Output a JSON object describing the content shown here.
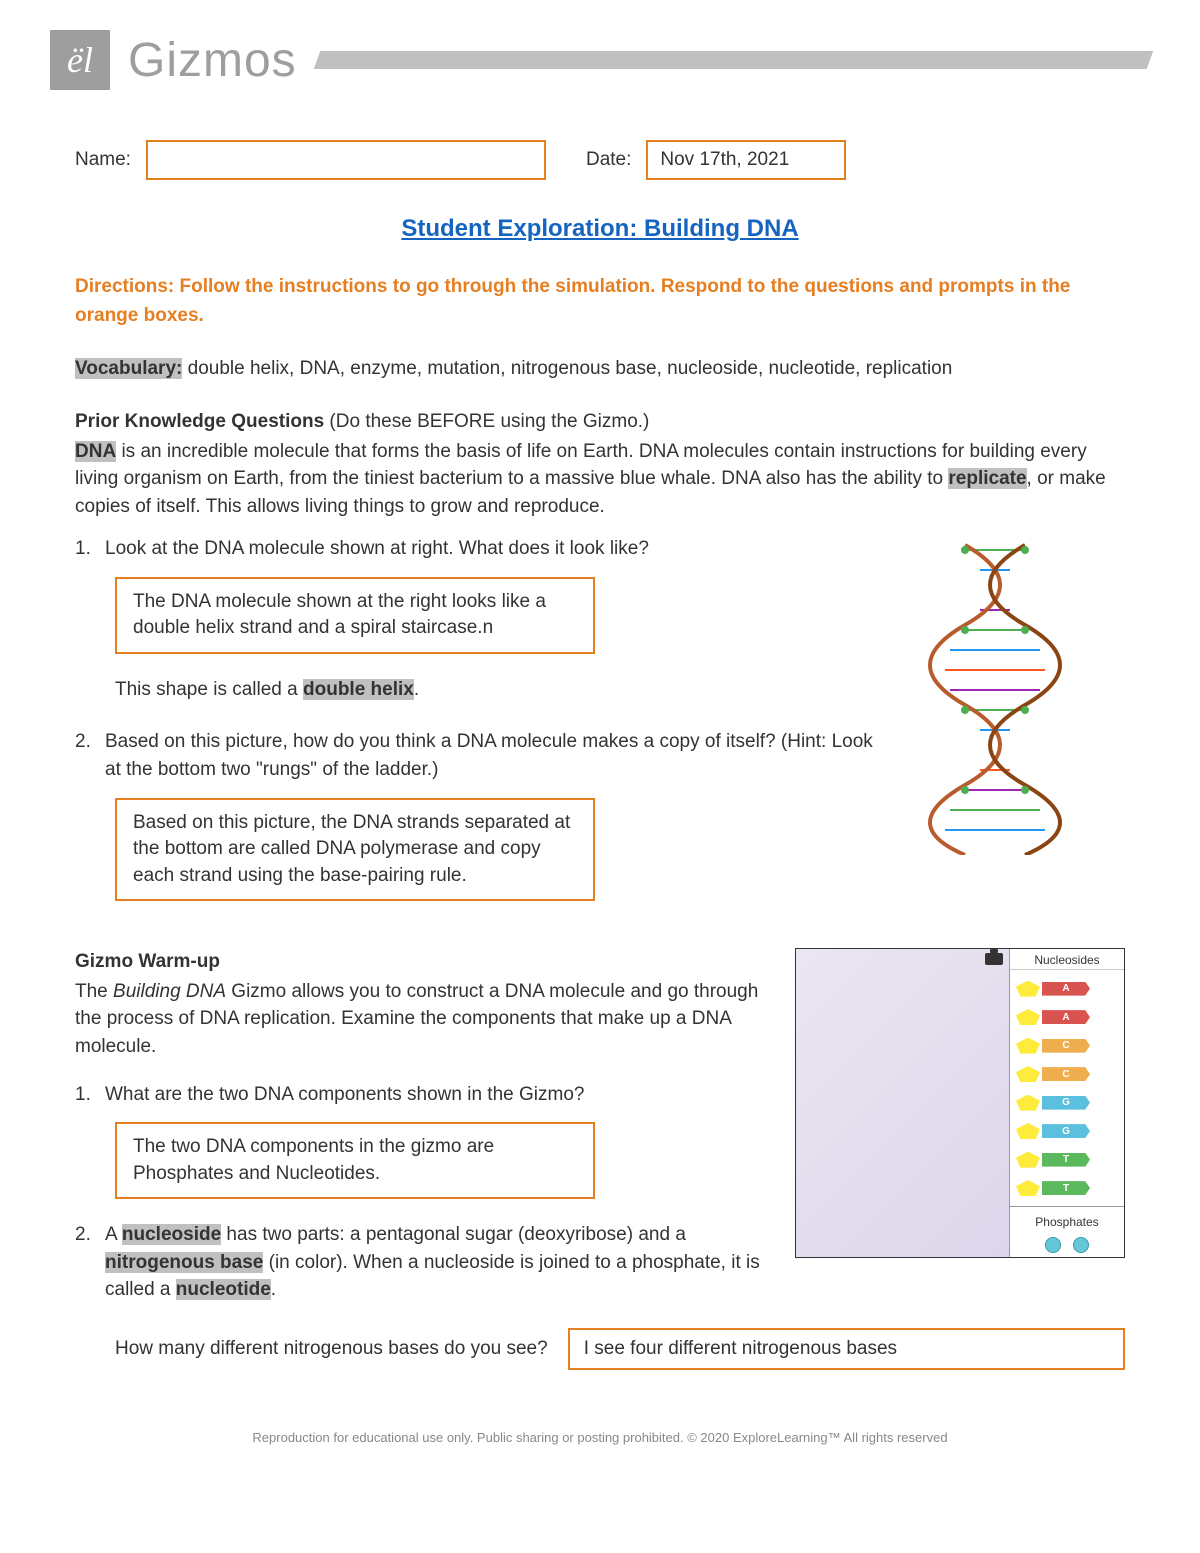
{
  "header": {
    "logo_text": "ël",
    "brand": "Gizmos"
  },
  "form": {
    "name_label": "Name:",
    "name_value": "",
    "date_label": "Date:",
    "date_value": "Nov 17th, 2021"
  },
  "title": "Student Exploration: Building DNA",
  "directions": "Directions: Follow the instructions to go through the simulation. Respond to the questions and prompts in the orange boxes.",
  "vocab": {
    "label": "Vocabulary:",
    "text": " double helix, DNA, enzyme, mutation, nitrogenous base, nucleoside, nucleotide, replication"
  },
  "prior": {
    "heading": "Prior Knowledge Questions ",
    "sub": "(Do these BEFORE using the Gizmo.)",
    "dna_label": "DNA",
    "para1_a": " is an incredible molecule that forms the basis of life on Earth. DNA molecules contain instructions for building every living organism on Earth, from the tiniest bacterium to a massive blue whale. DNA also has the ability to ",
    "replicate": "replicate",
    "para1_b": ", or make copies of itself. This allows living things to grow and reproduce."
  },
  "q1": {
    "num": "1.",
    "text": "Look at the DNA molecule shown at right. What does it look like?",
    "answer": "The DNA molecule shown at the right looks like a double helix strand and a spiral staircase.n",
    "after_a": "This shape is called a ",
    "dh": "double helix",
    "after_b": "."
  },
  "q2": {
    "num": "2.",
    "text": "Based on this picture, how do you think a DNA molecule makes a copy of itself? (Hint: Look at the bottom two \"rungs\" of the ladder.)",
    "answer": "Based on this picture, the DNA strands separated at the bottom are called DNA polymerase and copy each strand using the base-pairing rule."
  },
  "warmup": {
    "heading": "Gizmo Warm-up",
    "para_a": "The ",
    "italic": "Building DNA",
    "para_b": " Gizmo allows you to construct a DNA molecule and go through the process of DNA replication. Examine the components that make up a DNA molecule."
  },
  "wq1": {
    "num": "1.",
    "text": "What are the two DNA components shown in the Gizmo?",
    "answer": "The two DNA components in the gizmo are Phosphates and Nucleotides."
  },
  "wq2": {
    "num": "2.",
    "text_a": "A ",
    "nucleoside": "nucleoside",
    "text_b": " has two parts: a pentagonal sugar (deoxyribose) and a ",
    "nbase": "nitrogenous base",
    "text_c": " (in color). When a nucleoside is joined to a phosphate, it is called a ",
    "nucleotide": "nucleotide",
    "text_d": ".",
    "q_text": "How many different nitrogenous bases do you see?",
    "answer": "I see four different nitrogenous bases"
  },
  "gizmo_panel": {
    "nucleosides_label": "Nucleosides",
    "phosphates_label": "Phosphates",
    "bases": [
      {
        "letter": "A",
        "color": "#d9534f"
      },
      {
        "letter": "A",
        "color": "#d9534f"
      },
      {
        "letter": "C",
        "color": "#f0ad4e"
      },
      {
        "letter": "C",
        "color": "#f0ad4e"
      },
      {
        "letter": "G",
        "color": "#5bc0de"
      },
      {
        "letter": "G",
        "color": "#5bc0de"
      },
      {
        "letter": "T",
        "color": "#5cb85c"
      },
      {
        "letter": "T",
        "color": "#5cb85c"
      }
    ]
  },
  "dna_image": {
    "backbone_color_1": "#b85c2e",
    "backbone_color_2": "#8b4513",
    "rung_colors": [
      "#4caf50",
      "#2196f3",
      "#ff5722",
      "#9c27b0"
    ]
  },
  "footer": "Reproduction for educational use only. Public sharing or posting prohibited. © 2020 ExploreLearning™ All rights reserved",
  "colors": {
    "orange": "#e67e22",
    "title_blue": "#1565c0",
    "highlight": "#c0c0c0"
  }
}
